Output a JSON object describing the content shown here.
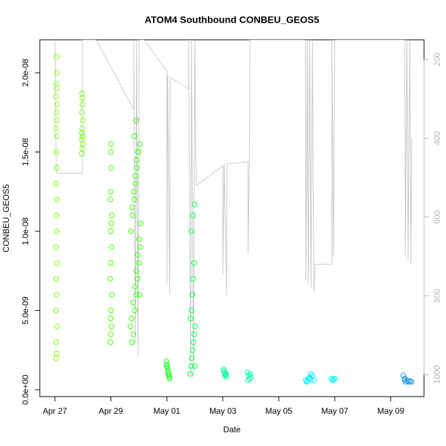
{
  "chart_data": {
    "type": "scatter",
    "title": "ATOM4 Southbound CONBEU_GEOS5",
    "x_label": "Date",
    "y_label": "CONBEU_GEOS5",
    "xlim": [
      -0.54,
      13.19
    ],
    "xticks": [
      {
        "value": 0,
        "label": "Apr 27"
      },
      {
        "value": 2,
        "label": "Apr 29"
      },
      {
        "value": 4,
        "label": "May 01"
      },
      {
        "value": 6,
        "label": "May 03"
      },
      {
        "value": 8,
        "label": "May 05"
      },
      {
        "value": 10,
        "label": "May 07"
      },
      {
        "value": 12,
        "label": "May 09"
      }
    ],
    "ylim": [
      -4.3e-10,
      2.208e-08
    ],
    "yticks": [
      {
        "value": 0,
        "label": "0.0e+00"
      },
      {
        "value": 5e-09,
        "label": "5.0e-09"
      },
      {
        "value": 1e-08,
        "label": "1.0e-08"
      },
      {
        "value": 1.5e-08,
        "label": "1.5e-08"
      },
      {
        "value": 2e-08,
        "label": "2.0e-08"
      }
    ],
    "y2lim": [
      1056,
      150
    ],
    "y2ticks": [
      200,
      400,
      600,
      800,
      1000
    ],
    "y2_color": "#b4b4b4",
    "series": [
      {
        "color": "#c8c8c8",
        "axis": "y2",
        "mode": "line",
        "x": [
          0,
          0.05,
          0.98,
          0.98,
          1.47,
          2.82,
          2.82,
          2.87,
          2.92,
          2.97,
          3.01,
          3.19,
          4.0,
          4.0,
          4.03,
          4.1,
          4.12,
          4.78,
          4.78,
          4.85,
          4.88,
          4.95,
          5.0,
          5.05,
          6.0,
          6.0,
          6.05,
          6.13,
          6.15,
          6.9,
          6.9,
          6.95,
          6.97,
          8.95,
          8.97,
          9.02,
          9.05,
          9.1,
          9.15,
          9.2,
          9.25,
          9.3,
          9.9,
          9.9,
          9.95,
          10.0,
          12.5,
          12.52,
          12.58,
          12.62,
          12.68,
          12.72,
          12.75
        ],
        "values": [
          150,
          489,
          489,
          150,
          150,
          327,
          150,
          920,
          150,
          954,
          150,
          150,
          230,
          771,
          240,
          794,
          245,
          275,
          150,
          1000,
          150,
          1010,
          150,
          520,
          470,
          745,
          465,
          800,
          465,
          460,
          693,
          460,
          150,
          150,
          760,
          150,
          770,
          150,
          780,
          150,
          790,
          720,
          720,
          150,
          700,
          150,
          150,
          700,
          150,
          710,
          150,
          720,
          400
        ]
      },
      {
        "color": "#80ff00",
        "x": [
          0.04,
          0.06,
          0.05,
          0.07,
          0.04,
          0.06,
          0.05,
          0.07,
          0.04,
          0.06,
          0.05,
          0.07,
          0.04,
          0.06,
          0.05,
          0.07,
          0.04,
          0.06,
          0.05,
          0.07,
          0.04,
          0.06,
          0.05,
          0.07,
          0.06
        ],
        "values": [
          2e-09,
          2.3e-09,
          3e-09,
          4e-09,
          5e-09,
          6e-09,
          7e-09,
          8e-09,
          9e-09,
          1e-08,
          1.1e-08,
          1.2e-08,
          1.3e-08,
          1.4e-08,
          1.5e-08,
          1.6e-08,
          1.65e-08,
          1.7e-08,
          1.75e-08,
          1.8e-08,
          1.85e-08,
          1.9e-08,
          1.93e-08,
          2e-08,
          2.1e-08
        ]
      },
      {
        "color": "#70ff00",
        "x": [
          0.96,
          0.98,
          1.0,
          0.97,
          0.99,
          0.96,
          0.98,
          1.0,
          0.97,
          0.99,
          0.98,
          0.97
        ],
        "values": [
          1.49e-08,
          1.52e-08,
          1.55e-08,
          1.58e-08,
          1.6e-08,
          1.62e-08,
          1.65e-08,
          1.7e-08,
          1.75e-08,
          1.8e-08,
          1.84e-08,
          1.87e-08
        ]
      },
      {
        "color": "#40ff00",
        "x": [
          1.98,
          2.0,
          2.02,
          1.99,
          2.01,
          2.03,
          1.98,
          2.0,
          2.02,
          1.99,
          2.01,
          2.03,
          1.98,
          2.0,
          2.02,
          1.99,
          2.01
        ],
        "values": [
          3e-09,
          3.5e-09,
          4e-09,
          4.5e-09,
          5e-09,
          6e-09,
          7e-09,
          8e-09,
          9e-09,
          1e-08,
          1.05e-08,
          1.1e-08,
          1.2e-08,
          1.25e-08,
          1.4e-08,
          1.5e-08,
          1.55e-08
        ]
      },
      {
        "color": "#2bff00",
        "x": [
          2.7,
          2.75,
          2.8,
          2.85,
          2.9,
          2.95,
          3.0,
          3.05,
          2.72,
          2.78,
          2.83,
          2.88,
          2.93,
          2.98,
          3.03,
          2.74,
          2.8,
          2.86,
          2.91,
          2.96,
          3.01,
          3.06,
          2.76,
          2.82,
          2.87,
          2.92,
          2.97,
          3.02,
          2.84,
          2.9
        ],
        "values": [
          4e-09,
          3e-09,
          3.5e-09,
          5e-09,
          6e-09,
          7e-09,
          8e-09,
          9e-09,
          1e-08,
          1.1e-08,
          1.2e-08,
          1.3e-08,
          1.4e-08,
          1.5e-08,
          1.55e-08,
          4.5e-09,
          5.5e-09,
          6.5e-09,
          7.5e-09,
          8.5e-09,
          9.5e-09,
          1.05e-08,
          1.15e-08,
          1.25e-08,
          1.35e-08,
          1.45e-08,
          1.5e-08,
          6e-09,
          1.6e-08,
          1.7e-08
        ]
      },
      {
        "color": "#1aff1a",
        "x": [
          3.98,
          4.0,
          4.02,
          4.04,
          4.06,
          4.08,
          4.1,
          3.99,
          4.03,
          4.07
        ],
        "values": [
          1.8e-09,
          1.6e-09,
          1.4e-09,
          1.2e-09,
          1e-09,
          8e-10,
          7e-10,
          1.5e-09,
          1.1e-09,
          9e-10
        ]
      },
      {
        "color": "#00ff40",
        "x": [
          4.83,
          4.86,
          4.89,
          4.92,
          4.95,
          4.98,
          5.01,
          4.85,
          4.88,
          4.91,
          4.94,
          4.97,
          5.0,
          4.87,
          4.93,
          4.99
        ],
        "values": [
          1e-09,
          1.5e-09,
          2e-09,
          2.5e-09,
          3e-09,
          3.5e-09,
          4e-09,
          4.5e-09,
          5e-09,
          6e-09,
          7e-09,
          8e-09,
          1.5e-09,
          1e-08,
          1.1e-08,
          1.17e-08
        ]
      },
      {
        "color": "#00ff99",
        "x": [
          6.02,
          6.05,
          6.08,
          6.11,
          6.14,
          6.04,
          6.1
        ],
        "values": [
          1.3e-09,
          1.1e-09,
          9e-10,
          1e-09,
          8e-10,
          1.2e-09,
          9.5e-10
        ]
      },
      {
        "color": "#00ffaa",
        "x": [
          6.88,
          6.92,
          6.96,
          7.0,
          6.9,
          6.98
        ],
        "values": [
          1.1e-09,
          9e-10,
          7e-10,
          8e-10,
          6e-10,
          1e-09
        ]
      },
      {
        "color": "#00eeff",
        "x": [
          8.95,
          9.0,
          9.05,
          9.1,
          9.15,
          9.2,
          9.26,
          9.02,
          9.12
        ],
        "values": [
          6e-10,
          5e-10,
          7e-10,
          8e-10,
          1e-09,
          9e-10,
          6e-10,
          5.5e-10,
          6.5e-10
        ]
      },
      {
        "color": "#00f5ff",
        "x": [
          9.88,
          9.92,
          9.96,
          10.0
        ],
        "values": [
          7e-10,
          6e-10,
          6.5e-10,
          7e-10
        ]
      },
      {
        "color": "#1090e8",
        "x": [
          12.45,
          12.5,
          12.55,
          12.6,
          12.65,
          12.7,
          12.75,
          12.5
        ],
        "values": [
          9e-10,
          6e-10,
          5e-10,
          6e-10,
          5e-10,
          5.5e-10,
          5e-10,
          7e-10
        ]
      }
    ]
  }
}
